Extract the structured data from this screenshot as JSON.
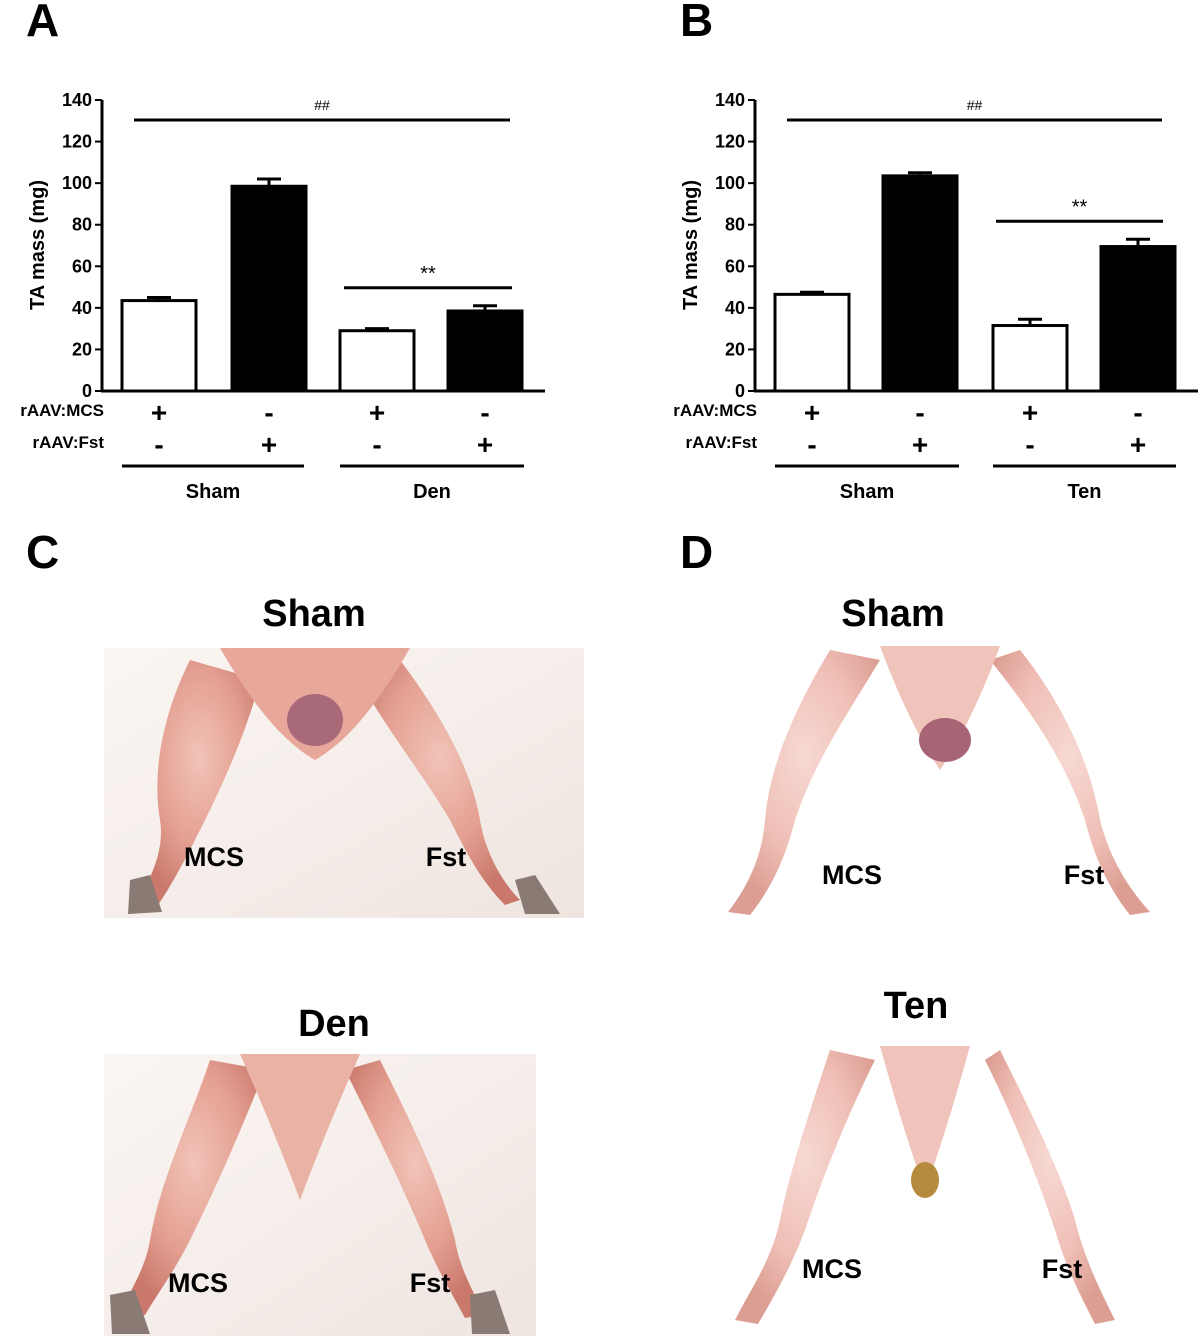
{
  "panels": {
    "a": "A",
    "b": "B",
    "c": "C",
    "d": "D"
  },
  "chart_data": [
    {
      "type": "bar",
      "panel": "A",
      "ylabel": "TA mass (mg)",
      "ylim": [
        0,
        140
      ],
      "yticks": [
        "0",
        "20",
        "40",
        "60",
        "80",
        "100",
        "120",
        "140"
      ],
      "categories": [
        "rAAV:MCS Sham",
        "rAAV:Fst Sham",
        "rAAV:MCS Den",
        "rAAV:Fst Den"
      ],
      "values": [
        43.5,
        98.5,
        29,
        38.5
      ],
      "errors": [
        1.5,
        3.5,
        1.0,
        2.5
      ],
      "bar_fills": [
        "#ffffff",
        "#000000",
        "#ffffff",
        "#000000"
      ],
      "row_labels": [
        "rAAV:MCS",
        "rAAV:Fst"
      ],
      "mcs_signs": [
        "+",
        "-",
        "+",
        "-"
      ],
      "fst_signs": [
        "-",
        "+",
        "-",
        "+"
      ],
      "groups": [
        "Sham",
        "Den"
      ],
      "sig_top": "##",
      "sig_pair": "**"
    },
    {
      "type": "bar",
      "panel": "B",
      "ylabel": "TA mass (mg)",
      "ylim": [
        0,
        140
      ],
      "yticks": [
        "0",
        "20",
        "40",
        "60",
        "80",
        "100",
        "120",
        "140"
      ],
      "categories": [
        "rAAV:MCS Sham",
        "rAAV:Fst Sham",
        "rAAV:MCS Ten",
        "rAAV:Fst Ten"
      ],
      "values": [
        46.5,
        103.5,
        31.5,
        69.5
      ],
      "errors": [
        1.0,
        1.5,
        3.0,
        3.5
      ],
      "bar_fills": [
        "#ffffff",
        "#000000",
        "#ffffff",
        "#000000"
      ],
      "row_labels": [
        "rAAV:MCS",
        "rAAV:Fst"
      ],
      "mcs_signs": [
        "+",
        "-",
        "+",
        "-"
      ],
      "fst_signs": [
        "-",
        "+",
        "-",
        "+"
      ],
      "groups": [
        "Sham",
        "Ten"
      ],
      "sig_top": "##",
      "sig_pair": "**"
    }
  ],
  "photos": {
    "c_top": {
      "title": "Sham",
      "left_label": "MCS",
      "right_label": "Fst"
    },
    "c_bottom": {
      "title": "Den",
      "left_label": "MCS",
      "right_label": "Fst"
    },
    "d_top": {
      "title": "Sham",
      "left_label": "MCS",
      "right_label": "Fst"
    },
    "d_bottom": {
      "title": "Ten",
      "left_label": "MCS",
      "right_label": "Fst"
    }
  },
  "colors": {
    "tissue": "#e8a79a",
    "tissue_dark": "#c96e63",
    "background_paper": "#f7f0ec"
  }
}
